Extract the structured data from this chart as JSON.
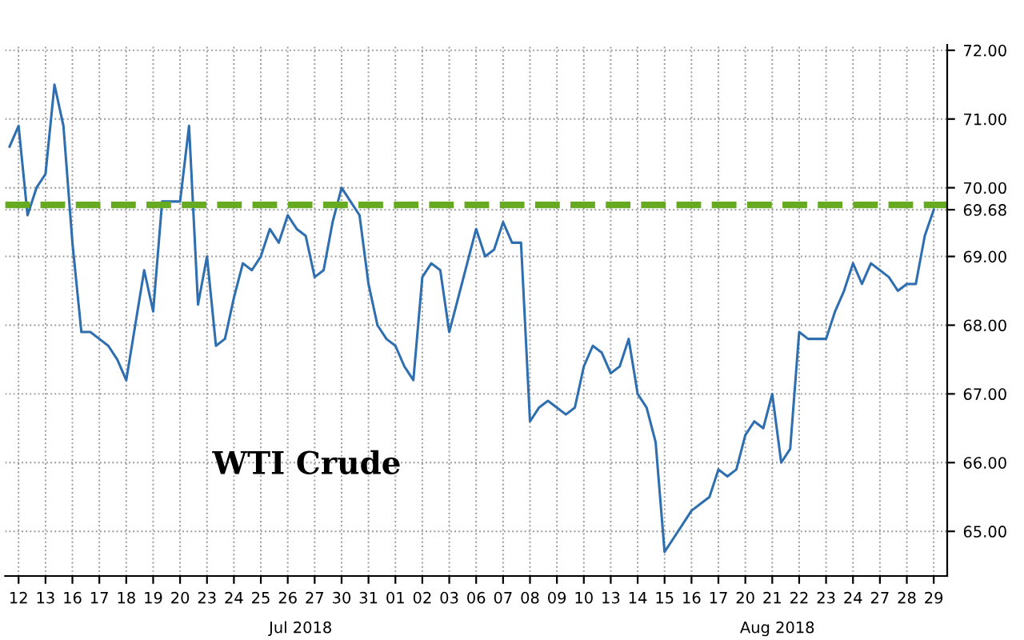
{
  "chart_data": {
    "type": "line",
    "categories": [
      null,
      "12",
      null,
      null,
      "13",
      null,
      null,
      "16",
      null,
      null,
      "17",
      null,
      null,
      "18",
      null,
      null,
      "19",
      null,
      null,
      "20",
      null,
      null,
      "23",
      null,
      null,
      "24",
      null,
      null,
      "25",
      null,
      null,
      "26",
      null,
      null,
      "27",
      null,
      null,
      "30",
      null,
      null,
      "31",
      null,
      null,
      "01",
      null,
      null,
      "02",
      null,
      null,
      "03",
      null,
      null,
      "06",
      null,
      null,
      "07",
      null,
      null,
      "08",
      null,
      null,
      "09",
      null,
      null,
      "10",
      null,
      null,
      "13",
      null,
      null,
      "14",
      null,
      null,
      "15",
      null,
      null,
      "16",
      null,
      null,
      "17",
      null,
      null,
      "20",
      null,
      null,
      "21",
      null,
      null,
      "22",
      null,
      null,
      "23",
      null,
      null,
      "24",
      null,
      null,
      "27",
      null,
      null,
      "28",
      null,
      null,
      "29",
      null
    ],
    "series": [
      {
        "color": "#2f6fb0",
        "values": [
          70.6,
          70.9,
          69.6,
          70.0,
          70.2,
          71.5,
          70.9,
          69.2,
          67.9,
          67.9,
          67.8,
          67.7,
          67.5,
          67.2,
          68.0,
          68.8,
          68.2,
          69.8,
          69.8,
          69.8,
          70.9,
          68.3,
          69.0,
          67.7,
          67.8,
          68.4,
          68.9,
          68.8,
          69.0,
          69.4,
          69.2,
          69.6,
          69.4,
          69.3,
          68.7,
          68.8,
          69.5,
          70.0,
          69.8,
          69.6,
          68.6,
          68.0,
          67.8,
          67.7,
          67.4,
          67.2,
          68.7,
          68.9,
          68.8,
          67.9,
          68.4,
          68.9,
          69.4,
          69.0,
          69.1,
          69.5,
          69.2,
          69.2,
          66.6,
          66.8,
          66.9,
          66.8,
          66.7,
          66.8,
          67.4,
          67.7,
          67.6,
          67.3,
          67.4,
          67.8,
          67.0,
          66.8,
          66.3,
          64.7,
          64.9,
          65.1,
          65.3,
          65.4,
          65.5,
          65.9,
          65.8,
          65.9,
          66.4,
          66.6,
          66.5,
          67.0,
          66.0,
          66.2,
          67.9,
          67.8,
          67.8,
          67.8,
          68.2,
          68.5,
          68.9,
          68.6,
          68.9,
          68.8,
          68.7,
          68.5,
          68.6,
          68.6,
          69.3,
          69.68,
          null
        ]
      }
    ],
    "ylim": [
      64.35,
      72.08
    ],
    "yticks": [
      {
        "value": 65,
        "label": "65.00"
      },
      {
        "value": 66,
        "label": "66.00"
      },
      {
        "value": 67,
        "label": "67.00"
      },
      {
        "value": 68,
        "label": "68.00"
      },
      {
        "value": 69,
        "label": "69.00"
      },
      {
        "value": 69.68,
        "label": "69.68"
      },
      {
        "value": 70,
        "label": "70.00"
      },
      {
        "value": 71,
        "label": "71.00"
      },
      {
        "value": 72,
        "label": "72.00"
      }
    ],
    "grid": true,
    "ref_lines": [
      {
        "axis": "y",
        "value": 69.75,
        "color": "#66aa22",
        "line_style": "dashed"
      }
    ],
    "annotations": [
      "WTI Crude",
      "Jul 2018",
      "Aug 2018"
    ]
  }
}
